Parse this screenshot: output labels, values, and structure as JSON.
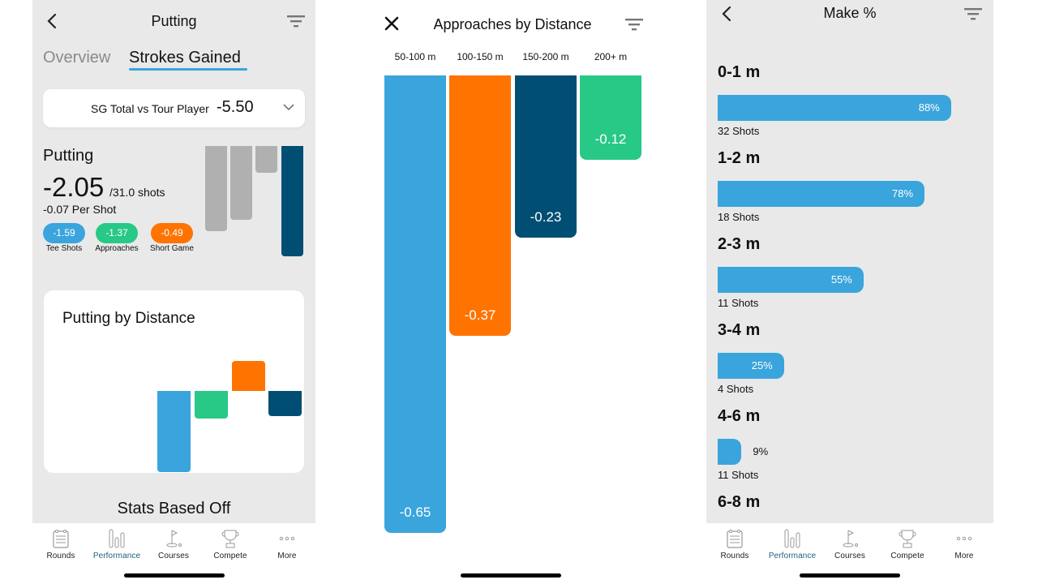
{
  "colors": {
    "blue": "#3aa4dc",
    "green": "#28c887",
    "orange": "#ff7300",
    "navy": "#004e73",
    "gray": "#b0b0b0",
    "active_tab": "#1e5f7e"
  },
  "tabbar": {
    "items": [
      {
        "label": "Rounds",
        "icon": "clipboard-icon",
        "active": false
      },
      {
        "label": "Performance",
        "icon": "bar-chart-icon",
        "active": true
      },
      {
        "label": "Courses",
        "icon": "golf-flag-icon",
        "active": false
      },
      {
        "label": "Compete",
        "icon": "trophy-icon",
        "active": false
      },
      {
        "label": "More",
        "icon": "more-dots-icon",
        "active": false
      }
    ]
  },
  "screen1": {
    "title": "Putting",
    "segments": {
      "overview": "Overview",
      "strokes_gained": "Strokes Gained",
      "active": "strokes_gained"
    },
    "sg_select": {
      "label": "SG Total vs Tour Player",
      "value": "-5.50"
    },
    "putting": {
      "title": "Putting",
      "value": "-2.05",
      "shots": "/31.0 shots",
      "per_shot": "-0.07 Per Shot"
    },
    "pills": [
      {
        "value": "-1.59",
        "label": "Tee Shots",
        "color": "#3aa4dc"
      },
      {
        "value": "-1.37",
        "label": "Approaches",
        "color": "#28c887"
      },
      {
        "value": "-0.49",
        "label": "Short Game",
        "color": "#ff7300"
      }
    ],
    "mini_chart": {
      "categories": [
        "Tee Shots",
        "Approaches",
        "Short Game",
        "Putting"
      ],
      "values": [
        -1.59,
        -1.37,
        -0.49,
        -2.05
      ],
      "highlight_index": 3
    },
    "putting_by_distance": {
      "title": "Putting by Distance",
      "values": [
        -0.65,
        -0.22,
        0.24,
        -0.2
      ],
      "colors": [
        "#3aa4dc",
        "#28c887",
        "#ff7300",
        "#004e73"
      ]
    },
    "stats_based_off": "Stats Based Off"
  },
  "screen2": {
    "title": "Approaches by Distance",
    "chart_data": {
      "type": "bar",
      "title": "Approaches by Distance",
      "categories": [
        "50-100 m",
        "100-150 m",
        "150-200 m",
        "200+ m"
      ],
      "values": [
        -0.65,
        -0.37,
        -0.23,
        -0.12
      ],
      "labels": [
        "-0.65",
        "-0.37",
        "-0.23",
        "-0.12"
      ],
      "colors": [
        "#3aa4dc",
        "#ff7300",
        "#004e73",
        "#28c887"
      ],
      "ylim": [
        -0.65,
        0
      ]
    }
  },
  "screen3": {
    "title": "Make %",
    "chart_data": {
      "type": "bar",
      "orientation": "horizontal",
      "title": "Make %",
      "categories": [
        "0-1 m",
        "1-2 m",
        "2-3 m",
        "3-4 m",
        "4-6 m",
        "6-8 m"
      ],
      "values": [
        88,
        78,
        55,
        25,
        9,
        null
      ],
      "labels": [
        "88%",
        "78%",
        "55%",
        "25%",
        "9%",
        ""
      ],
      "shots": [
        "32 Shots",
        "18 Shots",
        "11 Shots",
        "4 Shots",
        "11 Shots",
        ""
      ],
      "xlim": [
        0,
        100
      ]
    }
  }
}
